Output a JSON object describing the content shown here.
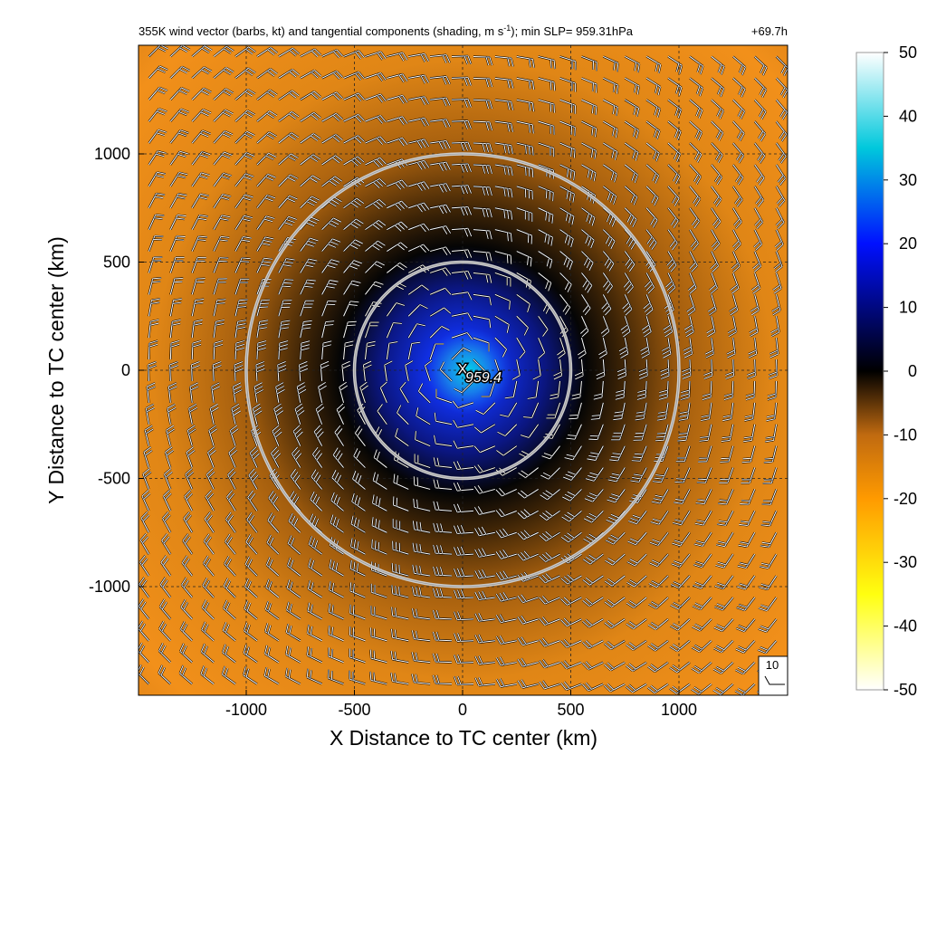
{
  "chart_data": {
    "type": "heatmap",
    "title_main": "355K wind vector (barbs, kt) and tangential components (shading, m s",
    "title_sup": "-1",
    "title_rest": "); min SLP= 959.31hPa",
    "forecast_hour": "+69.7h",
    "xlabel": "X Distance to TC center (km)",
    "ylabel": "Y Distance to TC center (km)",
    "xlim": [
      -1500,
      1500
    ],
    "ylim": [
      -1500,
      1500
    ],
    "x_ticks": [
      -1000,
      -500,
      0,
      500,
      1000
    ],
    "y_ticks": [
      -1000,
      -500,
      0,
      500,
      1000
    ],
    "x_tick_labels": [
      "-1000",
      "-500",
      "0",
      "500",
      "1000"
    ],
    "y_tick_labels": [
      "-1000",
      "-500",
      "0",
      "500",
      "1000"
    ],
    "grid": true,
    "range_circles_km": [
      500,
      1000
    ],
    "center_marker": "X",
    "center_label": "959.4",
    "reference_barb_label": "10",
    "colorbar": {
      "min": -50,
      "max": 50,
      "ticks": [
        50,
        40,
        30,
        20,
        10,
        0,
        -10,
        -20,
        -30,
        -40,
        -50
      ],
      "tick_labels": [
        "50",
        "40",
        "30",
        "20",
        "10",
        "0",
        "-10",
        "-20",
        "-30",
        "-40",
        "-50"
      ],
      "colors": [
        "#ffffff",
        "#00c8dc",
        "#0000ff",
        "#000000",
        "#ff8c00",
        "#ffff00",
        "#ffffff"
      ]
    },
    "field": {
      "description_free": true,
      "core_value_ms": 20,
      "orange_ring_value_ms": -20,
      "orange_ring_peak_radius_km": 900
    }
  }
}
